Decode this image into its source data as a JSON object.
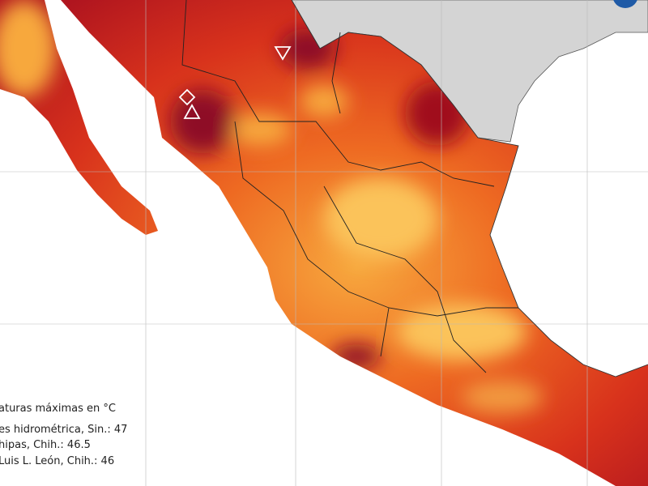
{
  "legend": {
    "title": "aturas máximas en °C",
    "entries": [
      "es hidrométrica, Sin.: 47",
      "hipas, Chih.: 46.5",
      "Luis L. León, Chih.: 46"
    ]
  }
}
